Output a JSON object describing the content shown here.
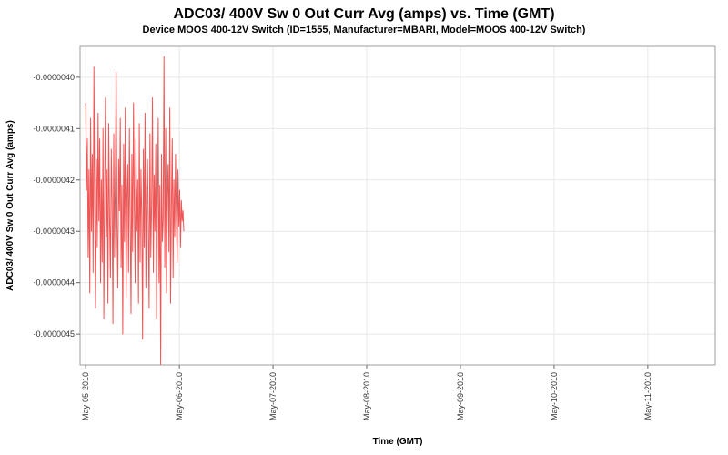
{
  "page": {
    "title": "ADC03/ 400V Sw 0 Out Curr Avg (amps) vs. Time (GMT)",
    "subtitle": "Device MOOS 400-12V Switch (ID=1555, Manufacturer=MBARI, Model=MOOS 400-12V Switch)"
  },
  "chart_data": {
    "type": "line",
    "title": "ADC03/ 400V Sw 0 Out Curr Avg (amps) vs. Time (GMT)",
    "subtitle": "Device MOOS 400-12V Switch (ID=1555, Manufacturer=MBARI, Model=MOOS 400-12V Switch)",
    "xlabel": "Time (GMT)",
    "ylabel": "ADC03/ 400V Sw 0 Out Curr Avg (amps)",
    "x_tick_labels": [
      "May-05-2010",
      "May-06-2010",
      "May-07-2010",
      "May-08-2010",
      "May-09-2010",
      "May-10-2010",
      "May-11-2010"
    ],
    "x_tick_positions_days": [
      0,
      1,
      2,
      3,
      4,
      5,
      6
    ],
    "xlim_days": [
      -0.06,
      6.72
    ],
    "y_tick_labels": [
      "-0.0000040",
      "-0.0000041",
      "-0.0000042",
      "-0.0000043",
      "-0.0000044",
      "-0.0000045"
    ],
    "y_tick_values_e6": [
      -4.0,
      -4.1,
      -4.2,
      -4.3,
      -4.4,
      -4.5
    ],
    "ylim_e6": [
      -4.56,
      -3.94
    ],
    "y_scale": 1e-06,
    "grid": true,
    "plot_background": "#ffffff",
    "grid_color": "#e8e8e8",
    "border_color": "#9e9e9e",
    "tick_color": "#666666",
    "label_color": "#333333",
    "series": [
      {
        "name": "ADC03/ 400V Sw 0 Out Curr Avg",
        "color": "#ee5555",
        "x_start_days": 0.0,
        "x_step_days": 0.0088,
        "values_e6": [
          -4.05,
          -4.22,
          -4.12,
          -4.35,
          -4.18,
          -4.42,
          -4.08,
          -4.3,
          -4.15,
          -4.38,
          -3.98,
          -4.25,
          -4.45,
          -4.16,
          -4.33,
          -4.07,
          -4.28,
          -4.12,
          -4.4,
          -4.2,
          -4.36,
          -4.1,
          -4.47,
          -4.22,
          -4.04,
          -4.31,
          -4.18,
          -4.44,
          -4.09,
          -4.27,
          -4.39,
          -4.14,
          -4.24,
          -4.48,
          -4.11,
          -4.35,
          -4.19,
          -3.99,
          -4.29,
          -4.41,
          -4.16,
          -4.26,
          -4.08,
          -4.37,
          -4.21,
          -4.5,
          -4.13,
          -4.32,
          -4.06,
          -4.43,
          -4.23,
          -4.17,
          -4.38,
          -4.1,
          -4.28,
          -4.46,
          -4.15,
          -4.34,
          -4.05,
          -4.25,
          -4.4,
          -4.12,
          -4.3,
          -4.2,
          -4.44,
          -4.09,
          -4.36,
          -4.18,
          -4.27,
          -4.51,
          -4.14,
          -4.33,
          -4.07,
          -4.41,
          -4.22,
          -4.16,
          -4.29,
          -4.45,
          -4.11,
          -4.35,
          -4.24,
          -4.04,
          -4.38,
          -4.19,
          -4.3,
          -4.13,
          -4.47,
          -4.26,
          -4.08,
          -4.4,
          -4.21,
          -4.56,
          -4.15,
          -4.32,
          -4.28,
          -3.96,
          -4.37,
          -4.1,
          -4.42,
          -4.23,
          -4.17,
          -4.34,
          -4.06,
          -4.44,
          -4.25,
          -4.12,
          -4.39,
          -4.2,
          -4.31,
          -4.15,
          -4.27,
          -4.36,
          -4.18,
          -4.29,
          -4.22,
          -4.33,
          -4.24,
          -4.28,
          -4.26,
          -4.3
        ]
      }
    ]
  }
}
